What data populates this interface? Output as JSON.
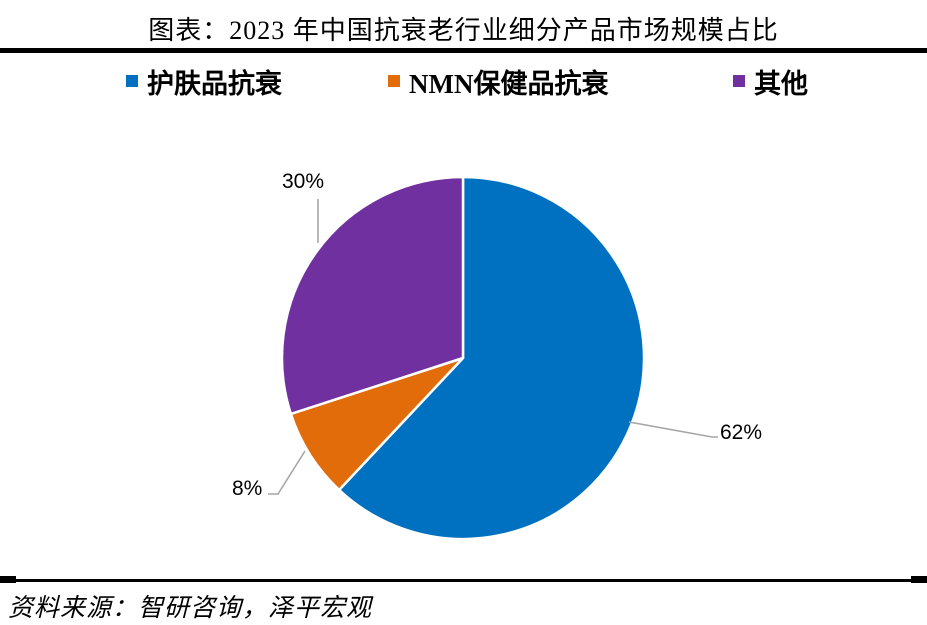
{
  "title": "图表：2023 年中国抗衰老行业细分产品市场规模占比",
  "legend": [
    {
      "label": "护肤品抗衰",
      "color": "#0070C0"
    },
    {
      "label": "NMN保健品抗衰",
      "color": "#E36C0A"
    },
    {
      "label": "其他",
      "color": "#7030A0"
    }
  ],
  "chart_data": {
    "type": "pie",
    "title": "2023年中国抗衰老行业细分产品市场规模占比",
    "categories": [
      "护肤品抗衰",
      "NMN保健品抗衰",
      "其他"
    ],
    "values": [
      62,
      8,
      30
    ],
    "labels": [
      "62%",
      "8%",
      "30%"
    ],
    "colors": [
      "#0070C0",
      "#E36C0A",
      "#7030A0"
    ],
    "unit": "percent",
    "start_angle_deg": 0,
    "direction": "clockwise",
    "legend_position": "top",
    "leader_line_color": "#A6A6A6"
  },
  "source": "资料来源：智研咨询，泽平宏观"
}
